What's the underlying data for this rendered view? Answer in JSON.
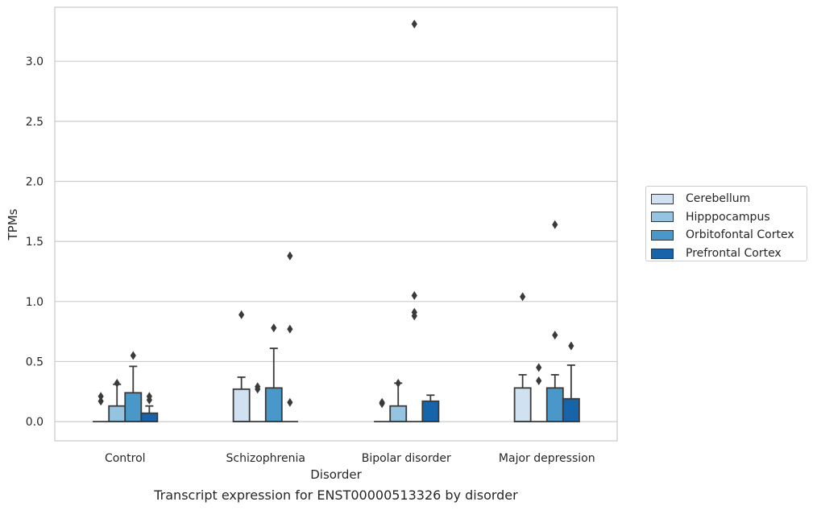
{
  "chart_data": {
    "type": "box",
    "caption": "Transcript expression for ENST00000513326 by disorder",
    "xlabel": "Disorder",
    "ylabel": "TPMs",
    "ylim": [
      -0.16,
      3.45
    ],
    "yticks": [
      0.0,
      0.5,
      1.0,
      1.5,
      2.0,
      2.5,
      3.0
    ],
    "ytick_labels": [
      "0.0",
      "0.5",
      "1.0",
      "1.5",
      "2.0",
      "2.5",
      "3.0"
    ],
    "grid": "horizontal",
    "legend_position": "right",
    "categories": [
      "Control",
      "Schizophrenia",
      "Bipolar disorder",
      "Major depression"
    ],
    "series": [
      {
        "name": "Cerebellum",
        "color": "#d0e1f2",
        "boxes": [
          {
            "q1": 0,
            "median": 0,
            "q3": 0,
            "whisker_low": 0,
            "whisker_high": 0,
            "outliers": [
              0.17,
              0.21
            ]
          },
          {
            "q1": 0,
            "median": 0,
            "q3": 0.27,
            "whisker_low": 0,
            "whisker_high": 0.37,
            "outliers": [
              0.89
            ]
          },
          {
            "q1": 0,
            "median": 0,
            "q3": 0,
            "whisker_low": 0,
            "whisker_high": 0,
            "outliers": [
              0.15,
              0.16
            ]
          },
          {
            "q1": 0,
            "median": 0,
            "q3": 0.28,
            "whisker_low": 0,
            "whisker_high": 0.39,
            "outliers": [
              1.04
            ]
          }
        ]
      },
      {
        "name": "Hipppocampus",
        "color": "#94c4df",
        "boxes": [
          {
            "q1": 0,
            "median": 0,
            "q3": 0.13,
            "whisker_low": 0,
            "whisker_high": 0.31,
            "outliers": [
              0.32
            ]
          },
          {
            "q1": 0,
            "median": 0,
            "q3": 0,
            "whisker_low": 0,
            "whisker_high": 0,
            "outliers": [
              0.27,
              0.29
            ]
          },
          {
            "q1": 0,
            "median": 0,
            "q3": 0.13,
            "whisker_low": 0,
            "whisker_high": 0.32,
            "outliers": [
              0.32
            ]
          },
          {
            "q1": 0,
            "median": 0,
            "q3": 0,
            "whisker_low": 0,
            "whisker_high": 0,
            "outliers": [
              0.34,
              0.45
            ]
          }
        ]
      },
      {
        "name": "Orbitofontal Cortex",
        "color": "#4a98c9",
        "boxes": [
          {
            "q1": 0,
            "median": 0,
            "q3": 0.24,
            "whisker_low": 0,
            "whisker_high": 0.46,
            "outliers": [
              0.55
            ]
          },
          {
            "q1": 0,
            "median": 0,
            "q3": 0.28,
            "whisker_low": 0,
            "whisker_high": 0.61,
            "outliers": [
              0.78
            ]
          },
          {
            "q1": 0,
            "median": 0,
            "q3": 0,
            "whisker_low": 0,
            "whisker_high": 0,
            "outliers": [
              0.88,
              0.91,
              1.05,
              3.31
            ]
          },
          {
            "q1": 0,
            "median": 0,
            "q3": 0.28,
            "whisker_low": 0,
            "whisker_high": 0.39,
            "outliers": [
              0.72,
              1.64
            ]
          }
        ]
      },
      {
        "name": "Prefrontal Cortex",
        "color": "#1764ab",
        "boxes": [
          {
            "q1": 0,
            "median": 0,
            "q3": 0.07,
            "whisker_low": 0,
            "whisker_high": 0.13,
            "outliers": [
              0.18,
              0.21
            ]
          },
          {
            "q1": 0,
            "median": 0,
            "q3": 0,
            "whisker_low": 0,
            "whisker_high": 0,
            "outliers": [
              0.16,
              0.77,
              1.38
            ]
          },
          {
            "q1": 0,
            "median": 0,
            "q3": 0.17,
            "whisker_low": 0,
            "whisker_high": 0.22,
            "outliers": []
          },
          {
            "q1": 0,
            "median": 0,
            "q3": 0.19,
            "whisker_low": 0,
            "whisker_high": 0.47,
            "outliers": [
              0.63
            ]
          }
        ]
      }
    ]
  }
}
